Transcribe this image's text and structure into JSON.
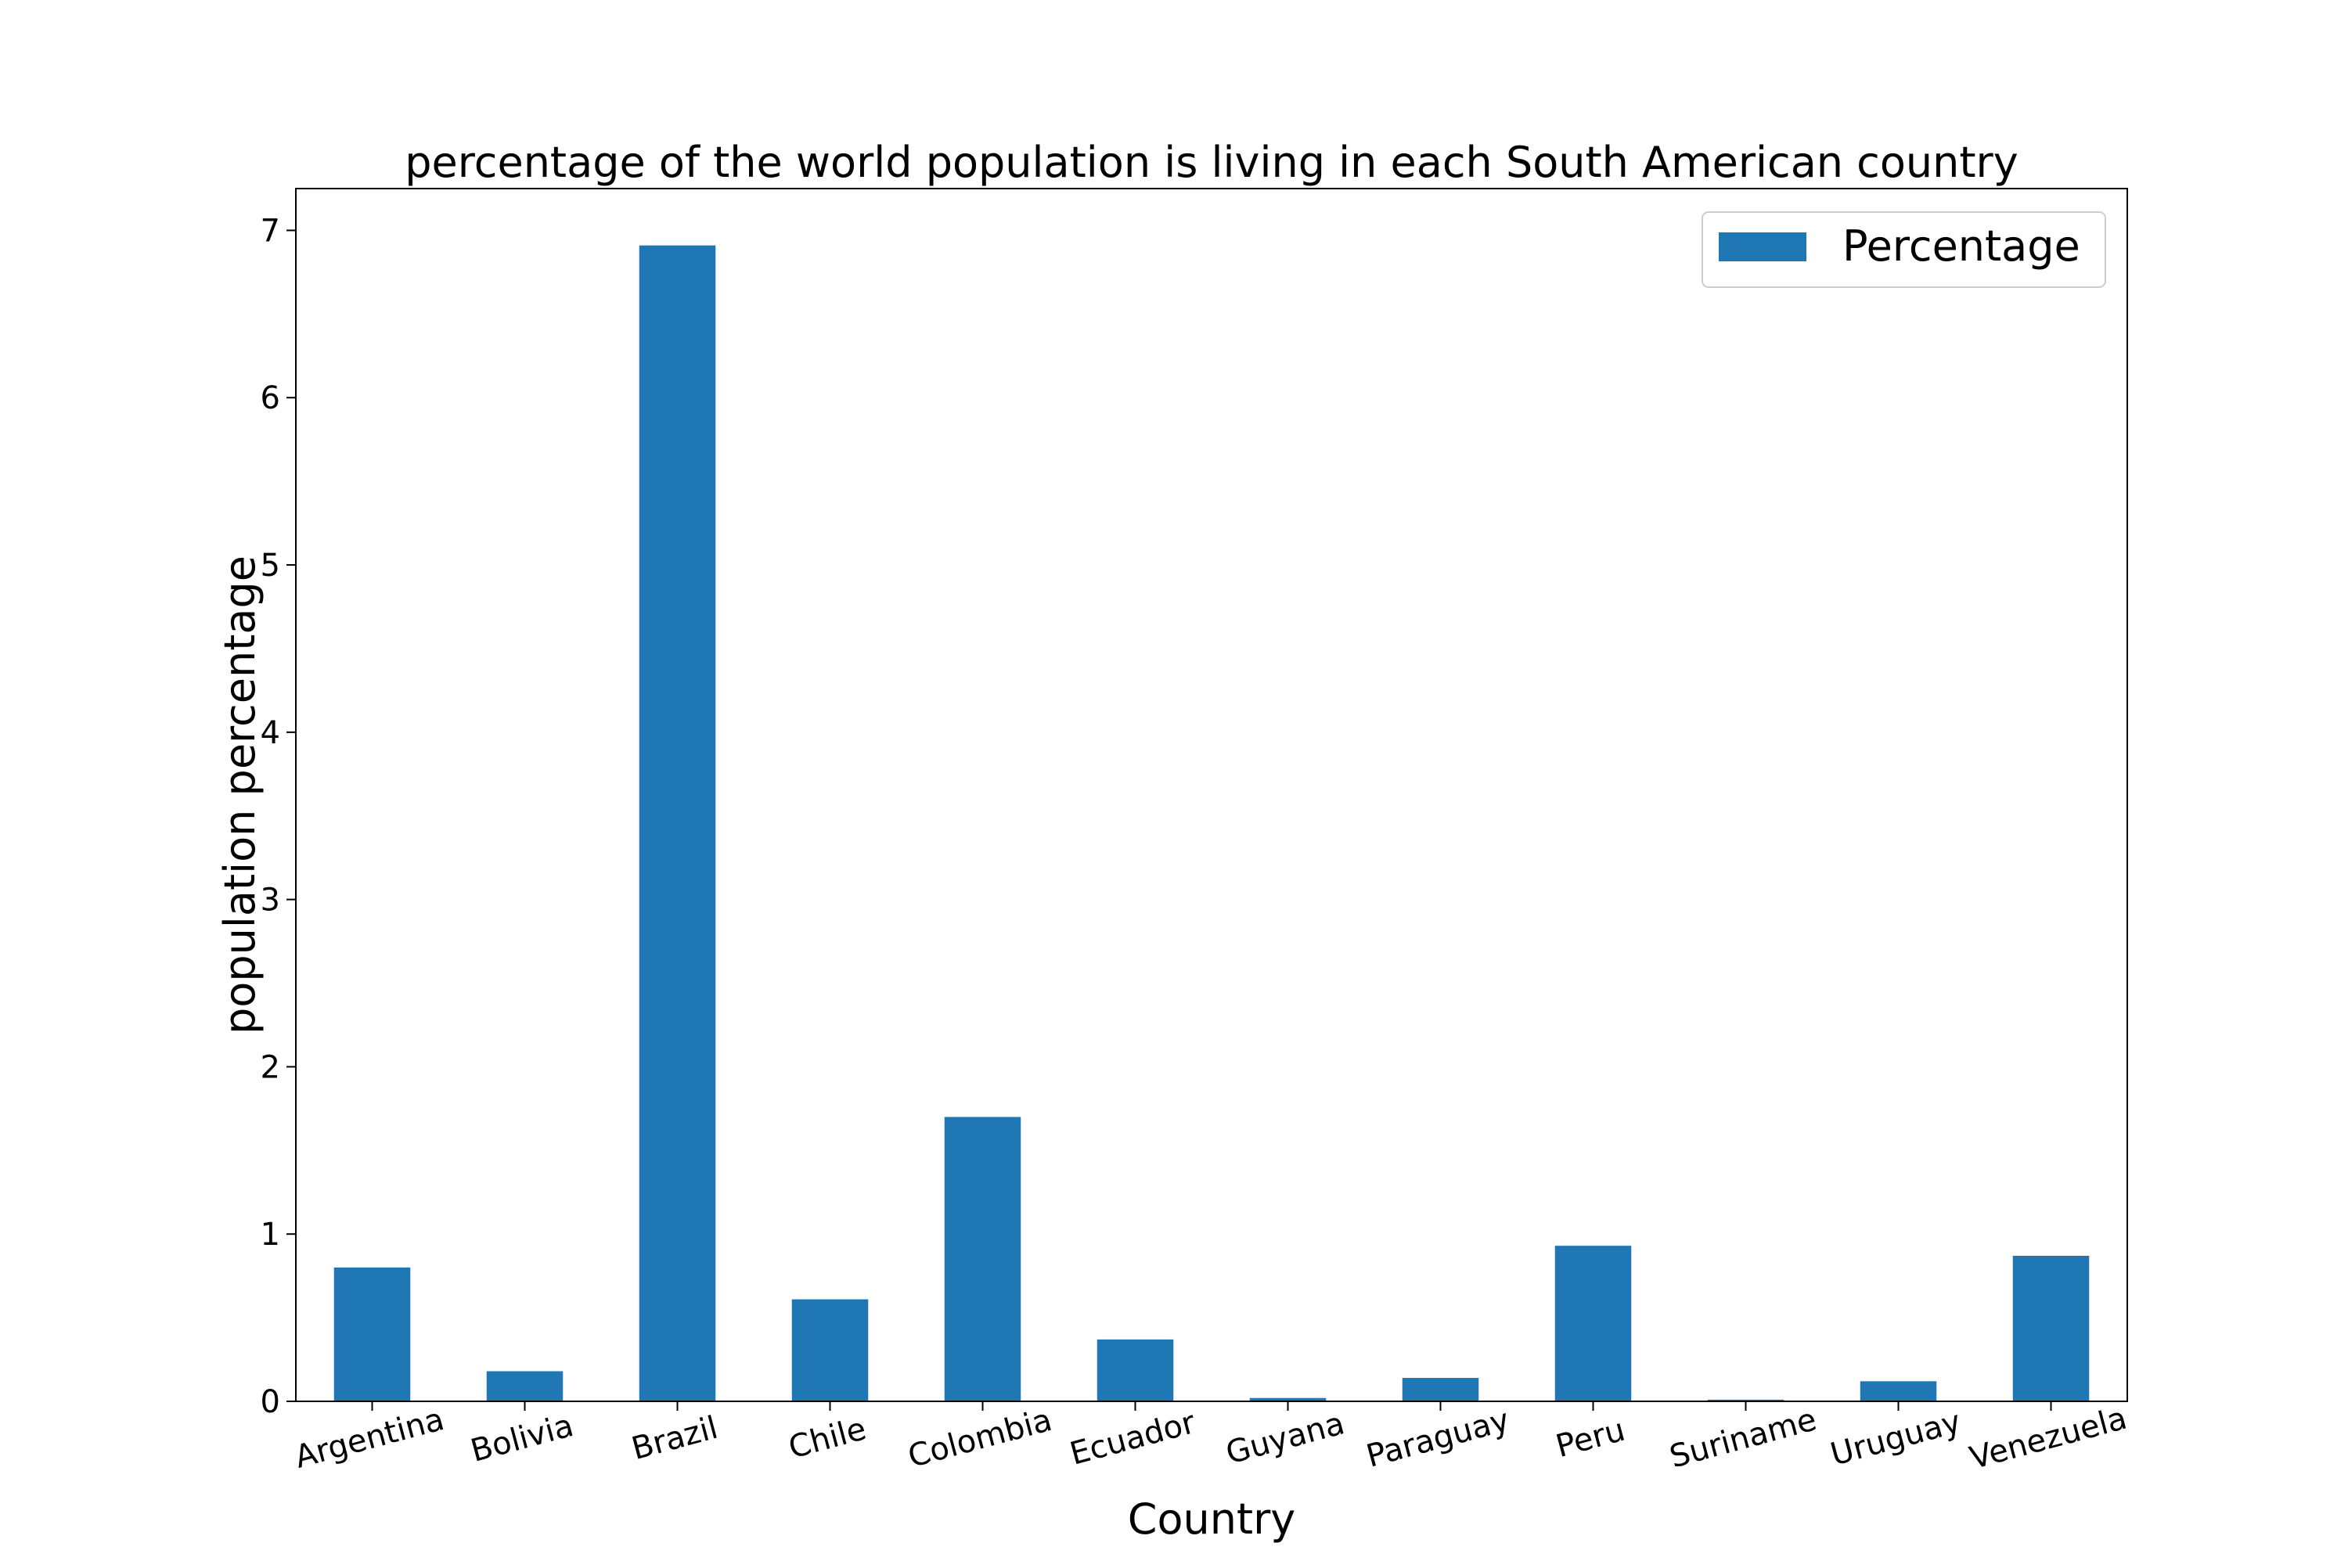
{
  "chart_data": {
    "type": "bar",
    "title": "percentage of the world population is living in each South American country",
    "xlabel": "Country",
    "ylabel": "population percentage",
    "categories": [
      "Argentina",
      "Bolivia",
      "Brazil",
      "Chile",
      "Colombia",
      "Ecuador",
      "Guyana",
      "Paraguay",
      "Peru",
      "Suriname",
      "Uruguay",
      "Venezuela"
    ],
    "series": [
      {
        "name": "Percentage",
        "color": "#1f77b4",
        "values": [
          0.8,
          0.18,
          6.91,
          0.61,
          1.7,
          0.37,
          0.02,
          0.14,
          0.93,
          0.01,
          0.12,
          0.87
        ]
      }
    ],
    "ylim": [
      0,
      7.25
    ],
    "yticks": [
      0,
      1,
      2,
      3,
      4,
      5,
      6,
      7
    ],
    "grid": false,
    "legend_position": "top-right"
  }
}
